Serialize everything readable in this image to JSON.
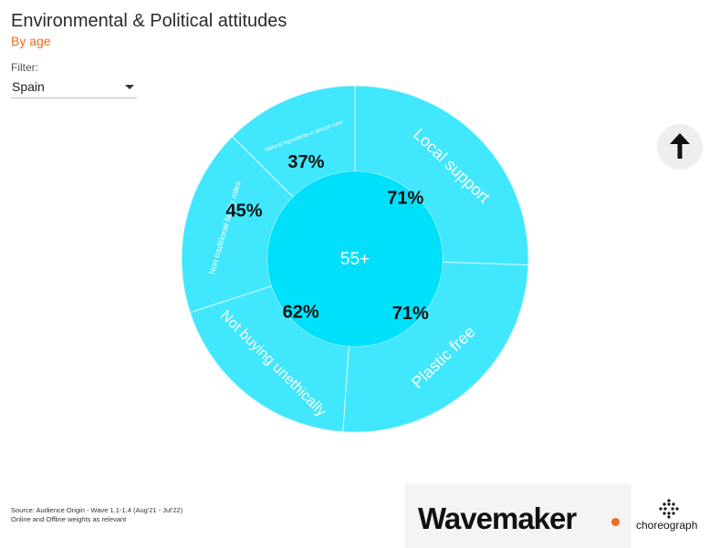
{
  "header": {
    "title": "Environmental & Political attitudes",
    "subtitle": "By age"
  },
  "filter": {
    "label": "Filter:",
    "value": "Spain"
  },
  "footer": {
    "source_line1": "Source: Audience Origin - Wave 1.1-1.4 (Aug'21 - Jul'22)",
    "source_line2": "Online and Offline weights as relevant"
  },
  "logos": {
    "wavemaker": "Wavemaker",
    "choreograph": "choreograph"
  },
  "icons": {
    "up_button": "arrow-up-icon",
    "dropdown": "chevron-down-icon"
  },
  "colors": {
    "outer_ring": "#40E7FD",
    "inner_disc": "#00E0FB",
    "accent": "#F26A1B"
  },
  "chart_data": {
    "type": "sunburst",
    "center_label": "55+",
    "segments": [
      {
        "name": "Local support",
        "value": 71,
        "label": "71%"
      },
      {
        "name": "Plastic free",
        "value": 71,
        "label": "71%"
      },
      {
        "name": "Not buying unethically",
        "value": 62,
        "label": "62%"
      },
      {
        "name": "Non traditional family roles",
        "value": 45,
        "label": "45%"
      },
      {
        "name": "Natural ingredients in person care",
        "value": 37,
        "label": "37%"
      }
    ]
  }
}
